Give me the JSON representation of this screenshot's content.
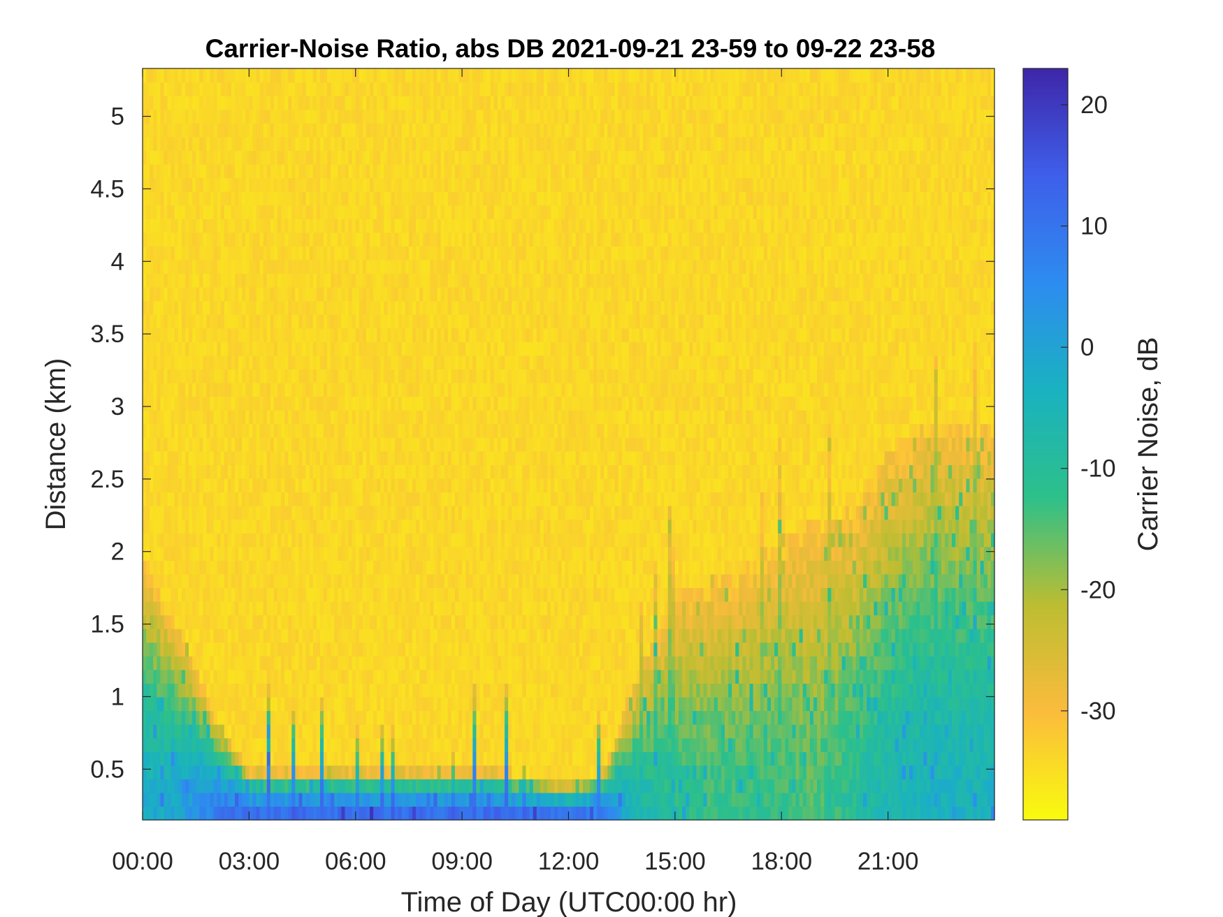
{
  "chart_data": {
    "type": "heatmap",
    "title": "Carrier-Noise Ratio, abs DB 2021-09-21 23-59 to 09-22 23-58",
    "xlabel": "Time of Day (UTC00:00 hr)",
    "ylabel": "Distance (km)",
    "colorbar_label": "Carrier Noise, dB",
    "xlim": [
      0,
      24
    ],
    "ylim": [
      0.15,
      5.33
    ],
    "clim": [
      -39,
      23
    ],
    "x_ticks": [
      0,
      3,
      6,
      9,
      12,
      15,
      18,
      21
    ],
    "x_tick_labels": [
      "00:00",
      "03:00",
      "06:00",
      "09:00",
      "12:00",
      "15:00",
      "18:00",
      "21:00"
    ],
    "y_ticks": [
      0.5,
      1,
      1.5,
      2,
      2.5,
      3,
      3.5,
      4,
      4.5,
      5
    ],
    "y_tick_labels": [
      "0.5",
      "1",
      "1.5",
      "2",
      "2.5",
      "3",
      "3.5",
      "4",
      "4.5",
      "5"
    ],
    "colorbar_ticks": [
      -30,
      -20,
      -10,
      0,
      10,
      20
    ],
    "colorbar_tick_labels": [
      "-30",
      "-20",
      "-10",
      "0",
      "10",
      "20"
    ],
    "colormap": "parula (reversed)",
    "colormap_stops": [
      "#f9fb0e",
      "#fbbc3c",
      "#bcbd32",
      "#2dc08a",
      "#1ab2c0",
      "#2d8cf0",
      "#3e5fea",
      "#3e26a8"
    ],
    "background_value": -32,
    "profile": {
      "hours": [
        0,
        0.5,
        1,
        2,
        3,
        4,
        5,
        6,
        7,
        8,
        9,
        10,
        11,
        12,
        13,
        14,
        15,
        16,
        17,
        18,
        19,
        20,
        21,
        22,
        23,
        24
      ],
      "signal_top_km": [
        2.0,
        1.7,
        1.5,
        0.9,
        0.5,
        0.5,
        0.5,
        0.5,
        0.5,
        0.5,
        0.5,
        0.5,
        0.45,
        0.4,
        0.5,
        1.2,
        1.7,
        1.8,
        1.9,
        2.1,
        2.2,
        2.3,
        2.7,
        2.9,
        2.9,
        2.9
      ],
      "near_ground_value": [
        -2,
        -2,
        0,
        8,
        13,
        13,
        13,
        13,
        13,
        13,
        13,
        13,
        13,
        13,
        8,
        -6,
        -10,
        -12,
        -12,
        -12,
        -14,
        -10,
        -6,
        -4,
        -4,
        -4
      ]
    }
  }
}
